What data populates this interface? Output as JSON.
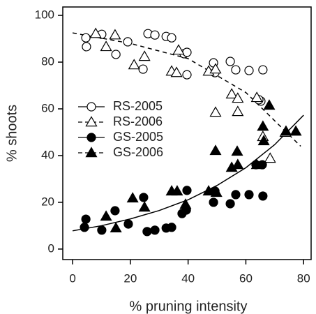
{
  "chart_data": {
    "type": "scatter",
    "xlabel": "% pruning intensity",
    "ylabel": "% shoots",
    "xlim": [
      -3.4,
      82.6
    ],
    "ylim": [
      -4.5,
      103.6
    ],
    "xticks": [
      0,
      20,
      40,
      60,
      80
    ],
    "yticks": [
      0,
      20,
      40,
      60,
      80,
      100
    ],
    "legend": "center-left",
    "series": [
      {
        "name": "RS-2005",
        "color": "#000000",
        "marker": "circle",
        "filled": false,
        "dashed": false,
        "x": [
          4.6,
          4.8,
          10.1,
          15,
          19.1,
          24.4,
          26.1,
          28.5,
          32.4,
          34.3,
          38.6,
          39.6,
          39.6,
          48.8,
          49.3,
          54.6,
          56.5,
          61.1,
          65.9,
          65.2,
          64.5
        ],
        "values": [
          90.4,
          86.6,
          91.9,
          83.3,
          88.7,
          77,
          92.2,
          91.6,
          91,
          90.4,
          83.6,
          84.2,
          74.6,
          79.7,
          75.5,
          80.3,
          76.7,
          76.4,
          76.7,
          63.3,
          63.9
        ]
      },
      {
        "name": "RS-2006",
        "color": "#000000",
        "marker": "triangle",
        "filled": false,
        "dashed": true,
        "x": [
          8,
          11.6,
          14.7,
          21.3,
          24.9,
          34.3,
          36,
          36.7,
          47.1,
          49.5,
          49.5,
          55.1,
          57.2,
          57.2,
          63.8,
          65.9,
          68.4,
          73.7
        ],
        "values": [
          92.2,
          86.6,
          91.6,
          78.8,
          82.4,
          76.1,
          75.5,
          85.1,
          76.1,
          77,
          58.5,
          66.3,
          64.5,
          58.8,
          64.8,
          48.1,
          38.8,
          49.9
        ]
      },
      {
        "name": "GS-2005",
        "color": "#000000",
        "marker": "circle",
        "filled": true,
        "dashed": false,
        "x": [
          4.6,
          4.1,
          10.1,
          14.7,
          19.3,
          24.6,
          25.8,
          28.5,
          32.4,
          34.3,
          37.9,
          39.4,
          39.6,
          48.8,
          49.3,
          54.6,
          56.5,
          61.1,
          65.9,
          63.5,
          65.7
        ],
        "values": [
          12.8,
          9.3,
          8.1,
          16.4,
          10.7,
          22.1,
          7.5,
          8.1,
          9,
          9.3,
          15.2,
          16.7,
          25.1,
          20,
          24.8,
          19.4,
          23.3,
          23.3,
          22.7,
          36.1,
          36.1
        ]
      },
      {
        "name": "GS-2006",
        "color": "#000000",
        "marker": "triangle",
        "filled": true,
        "dashed": true,
        "x": [
          15,
          11.6,
          20.8,
          24.9,
          34.3,
          36.2,
          39.1,
          47.1,
          49.5,
          49.8,
          55.1,
          57,
          57.2,
          65.9,
          66.2,
          68.1,
          73.9,
          77.3,
          63.8
        ],
        "values": [
          9,
          14,
          21.8,
          17.9,
          24.8,
          24.8,
          19.1,
          24.8,
          42.1,
          24.2,
          34.9,
          41.8,
          36.1,
          52.5,
          46.3,
          61.5,
          50.4,
          50.4,
          36.1
        ]
      }
    ],
    "fits": [
      {
        "dashed": true,
        "x": [
          0,
          20,
          40,
          60,
          79
        ],
        "values": [
          92.5,
          88,
          81.5,
          67,
          44
        ]
      },
      {
        "dashed": false,
        "x": [
          0,
          10,
          20,
          30,
          40,
          50,
          60,
          70,
          80
        ],
        "values": [
          7.8,
          10,
          12.9,
          16.5,
          21.1,
          27.2,
          34.8,
          44.7,
          57.3
        ]
      }
    ]
  }
}
